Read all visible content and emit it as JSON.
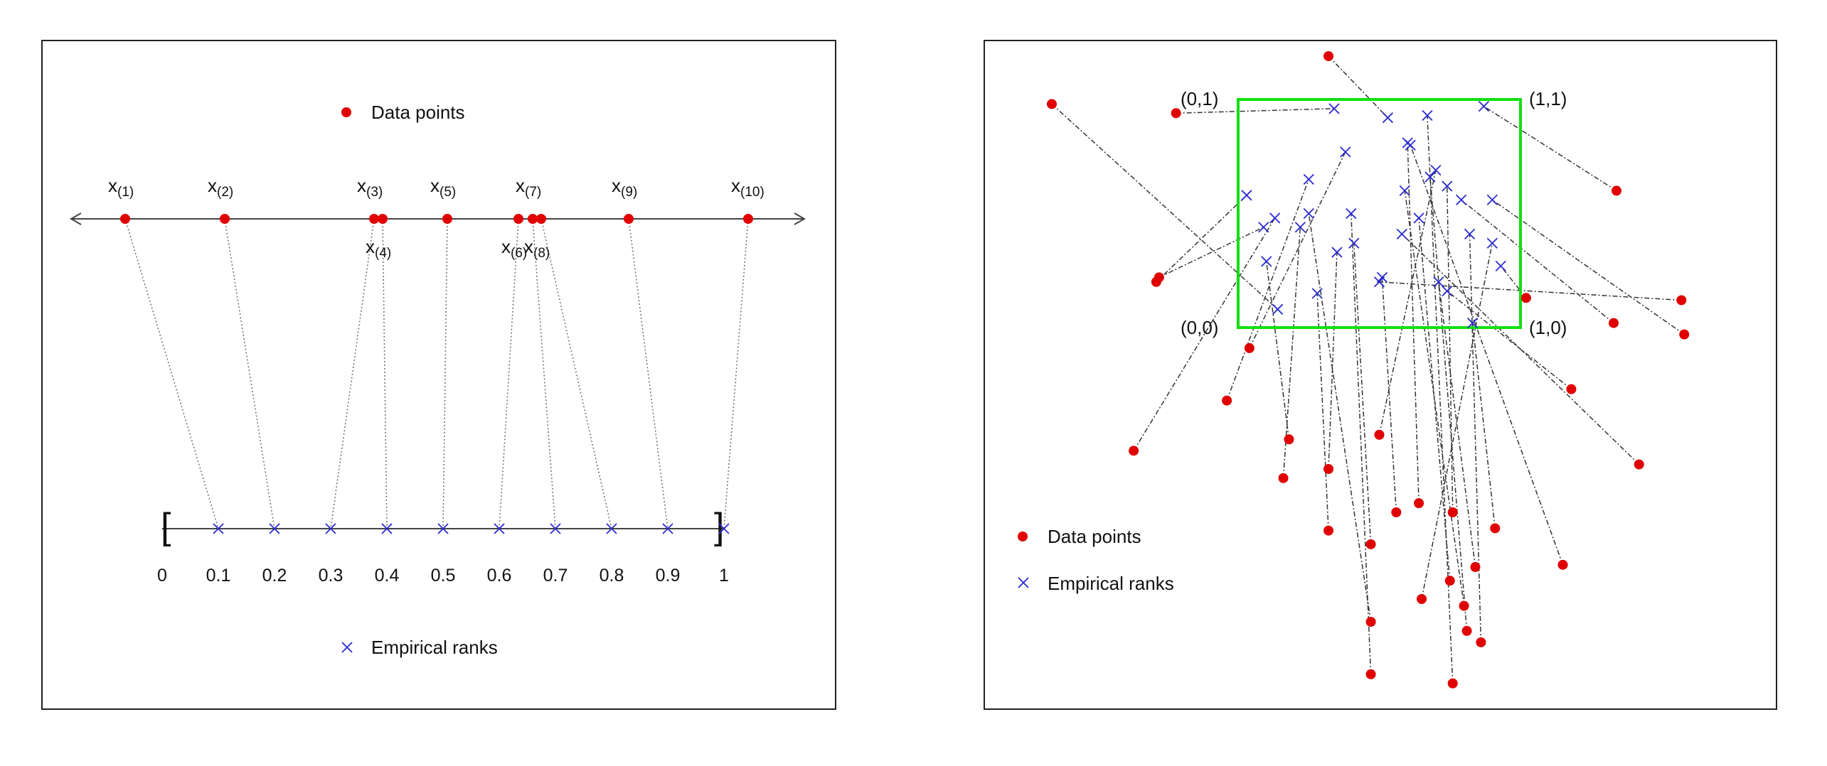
{
  "legend": {
    "data_points": "Data points",
    "empirical_ranks": "Empirical ranks"
  },
  "colors": {
    "data_point": "#e00000",
    "rank_marker": "#2a2ad0",
    "unit_square": "#10e010"
  },
  "left_panel": {
    "data_points": [
      {
        "label": "x",
        "sub": "(1)",
        "rank": 0.1,
        "label_pos": "above"
      },
      {
        "label": "x",
        "sub": "(2)",
        "rank": 0.2,
        "label_pos": "above"
      },
      {
        "label": "x",
        "sub": "(3)",
        "rank": 0.3,
        "label_pos": "above"
      },
      {
        "label": "x",
        "sub": "(4)",
        "rank": 0.4,
        "label_pos": "below"
      },
      {
        "label": "x",
        "sub": "(5)",
        "rank": 0.5,
        "label_pos": "above"
      },
      {
        "label": "x",
        "sub": "(6)",
        "rank": 0.6,
        "label_pos": "below"
      },
      {
        "label": "x",
        "sub": "(7)",
        "rank": 0.7,
        "label_pos": "above"
      },
      {
        "label": "x",
        "sub": "(8)",
        "rank": 0.8,
        "label_pos": "below"
      },
      {
        "label": "x",
        "sub": "(9)",
        "rank": 0.9,
        "label_pos": "above"
      },
      {
        "label": "x",
        "sub": "(10)",
        "rank": 1.0,
        "label_pos": "above"
      }
    ],
    "ranks": [
      0.1,
      0.2,
      0.3,
      0.4,
      0.5,
      0.6,
      0.7,
      0.8,
      0.9,
      1.0
    ],
    "tick_labels": [
      "0",
      "0.1",
      "0.2",
      "0.3",
      "0.4",
      "0.5",
      "0.6",
      "0.7",
      "0.8",
      "0.9",
      "1"
    ],
    "interval_open": "[",
    "interval_close": "]"
  },
  "right_panel": {
    "corner_labels": {
      "c00": "(0,0)",
      "c01": "(0,1)",
      "c10": "(1,0)",
      "c11": "(1,1)"
    },
    "pairs": [
      [
        [
          -0.66,
          0.98
        ],
        [
          0.14,
          0.08
        ]
      ],
      [
        [
          0.04,
          -0.09
        ],
        [
          0.38,
          0.77
        ]
      ],
      [
        [
          -0.04,
          -0.32
        ],
        [
          0.25,
          0.65
        ]
      ],
      [
        [
          -0.37,
          -0.54
        ],
        [
          0.13,
          0.48
        ]
      ],
      [
        [
          0.18,
          -0.49
        ],
        [
          0.1,
          0.29
        ]
      ],
      [
        [
          0.32,
          1.19
        ],
        [
          0.53,
          0.92
        ]
      ],
      [
        [
          -0.22,
          0.94
        ],
        [
          0.34,
          0.96
        ]
      ],
      [
        [
          -0.29,
          0.2
        ],
        [
          0.03,
          0.58
        ]
      ],
      [
        [
          -0.28,
          0.22
        ],
        [
          0.09,
          0.44
        ]
      ],
      [
        [
          0.16,
          -0.66
        ],
        [
          0.22,
          0.44
        ]
      ],
      [
        [
          0.32,
          -0.62
        ],
        [
          0.35,
          0.33
        ]
      ],
      [
        [
          0.32,
          -0.89
        ],
        [
          0.28,
          0.15
        ]
      ],
      [
        [
          0.47,
          -0.95
        ],
        [
          0.41,
          0.37
        ]
      ],
      [
        [
          0.47,
          -1.29
        ],
        [
          0.25,
          0.5
        ]
      ],
      [
        [
          0.56,
          -0.81
        ],
        [
          0.51,
          0.22
        ]
      ],
      [
        [
          0.47,
          -1.52
        ],
        [
          0.4,
          0.5
        ]
      ],
      [
        [
          0.76,
          -0.81
        ],
        [
          0.74,
          0.62
        ]
      ],
      [
        [
          0.64,
          -0.77
        ],
        [
          0.6,
          0.81
        ]
      ],
      [
        [
          0.8,
          -1.22
        ],
        [
          0.59,
          0.6
        ]
      ],
      [
        [
          0.81,
          -1.33
        ],
        [
          0.68,
          0.66
        ]
      ],
      [
        [
          0.75,
          -1.11
        ],
        [
          0.64,
          0.48
        ]
      ],
      [
        [
          0.84,
          -1.05
        ],
        [
          0.71,
          0.2
        ]
      ],
      [
        [
          0.86,
          -1.38
        ],
        [
          0.82,
          0.41
        ]
      ],
      [
        [
          0.76,
          -1.56
        ],
        [
          0.67,
          0.93
        ]
      ],
      [
        [
          0.91,
          -0.88
        ],
        [
          0.83,
          0.02
        ]
      ],
      [
        [
          1.02,
          0.13
        ],
        [
          0.93,
          0.27
        ]
      ],
      [
        [
          1.34,
          0.6
        ],
        [
          0.87,
          0.97
        ]
      ],
      [
        [
          1.33,
          0.02
        ],
        [
          0.79,
          0.56
        ]
      ],
      [
        [
          1.57,
          0.12
        ],
        [
          0.5,
          0.2
        ]
      ],
      [
        [
          1.18,
          -0.27
        ],
        [
          0.74,
          0.16
        ]
      ],
      [
        [
          1.42,
          -0.6
        ],
        [
          0.58,
          0.41
        ]
      ],
      [
        [
          1.58,
          -0.03
        ],
        [
          0.9,
          0.56
        ]
      ],
      [
        [
          1.15,
          -1.04
        ],
        [
          0.61,
          0.8
        ]
      ],
      [
        [
          0.5,
          -0.47
        ],
        [
          0.7,
          0.69
        ]
      ],
      [
        [
          0.65,
          -1.19
        ],
        [
          0.9,
          0.37
        ]
      ]
    ]
  }
}
